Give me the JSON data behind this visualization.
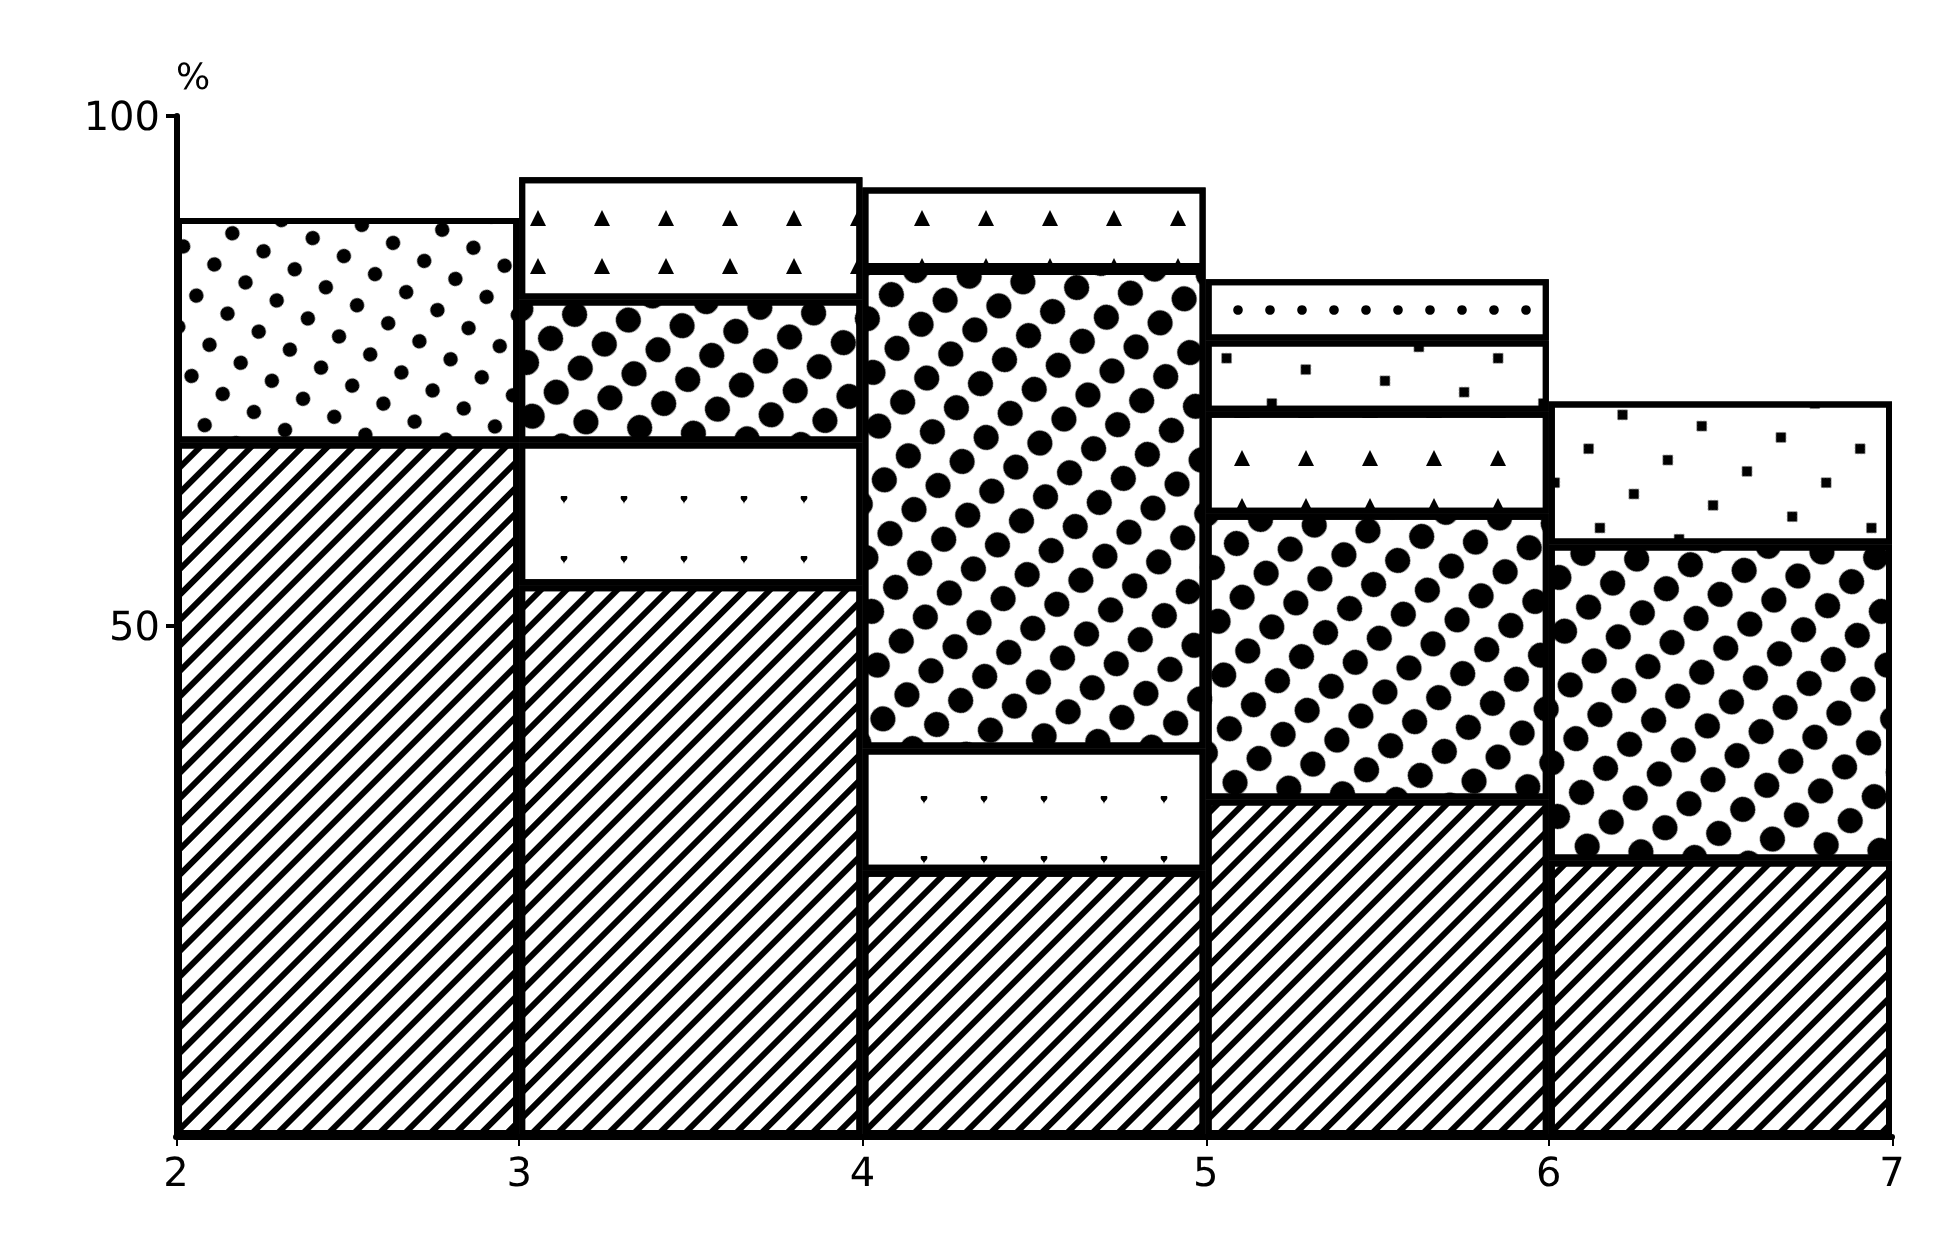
{
  "chart_data": {
    "type": "bar",
    "stacked": true,
    "x": [
      2.5,
      3.5,
      4.5,
      5.5,
      6.5
    ],
    "xlim": [
      2,
      7
    ],
    "xticks": [
      2,
      3,
      4,
      5,
      6,
      7
    ],
    "ylim": [
      0,
      100
    ],
    "yticks": [
      50,
      100
    ],
    "ylabel": "%",
    "grid": false,
    "series": [
      {
        "color": "#ffffff",
        "values": [
          68,
          54,
          26,
          33,
          27
        ]
      },
      {
        "color": "#ffffff",
        "values": [
          null,
          14,
          12,
          null,
          null
        ]
      },
      {
        "color": "#ffffff",
        "values": [
          null,
          14,
          47,
          28,
          31
        ]
      },
      {
        "color": "#ffffff",
        "values": [
          null,
          12,
          8,
          10,
          null
        ]
      },
      {
        "color": "#ffffff",
        "values": [
          null,
          null,
          null,
          7,
          14
        ]
      },
      {
        "color": "#ffffff",
        "values": [
          null,
          null,
          null,
          6,
          null
        ]
      },
      {
        "color": "#ffffff",
        "values": [
          22,
          null,
          null,
          null,
          null
        ]
      }
    ]
  }
}
